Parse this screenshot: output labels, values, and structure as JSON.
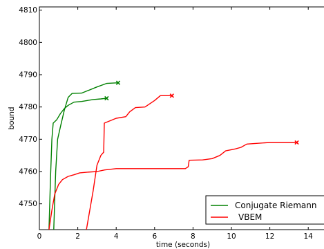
{
  "chart_data": {
    "type": "line",
    "title": "",
    "xlabel": "time (seconds)",
    "ylabel": "bound",
    "xlim": [
      0,
      15
    ],
    "ylim": [
      4742,
      4811
    ],
    "xticks": [
      0,
      2,
      4,
      6,
      8,
      10,
      12,
      14
    ],
    "yticks": [
      4750,
      4760,
      4770,
      4780,
      4790,
      4800,
      4810
    ],
    "grid": false,
    "legend_position": "bottom-right",
    "series": [
      {
        "name": "Conjugate Riemann",
        "color": "#008000",
        "end_marker": "x",
        "points": [
          [
            0.5,
            4742
          ],
          [
            0.58,
            4758
          ],
          [
            0.65,
            4770
          ],
          [
            0.72,
            4775
          ],
          [
            0.9,
            4776
          ],
          [
            1.1,
            4778
          ],
          [
            1.3,
            4779.5
          ],
          [
            1.5,
            4780.5
          ],
          [
            1.8,
            4781.5
          ],
          [
            2.2,
            4781.7
          ],
          [
            2.8,
            4782.3
          ],
          [
            3.2,
            4782.5
          ],
          [
            3.5,
            4782.7
          ]
        ]
      },
      {
        "name": "Conjugate Riemann",
        "color": "#008000",
        "end_marker": "x",
        "points": [
          [
            0.75,
            4742
          ],
          [
            0.85,
            4760
          ],
          [
            0.95,
            4770
          ],
          [
            1.1,
            4774
          ],
          [
            1.3,
            4779
          ],
          [
            1.5,
            4783
          ],
          [
            1.7,
            4784.2
          ],
          [
            2.2,
            4784.3
          ],
          [
            3.0,
            4786.2
          ],
          [
            3.5,
            4787.3
          ],
          [
            4.1,
            4787.5
          ]
        ]
      },
      {
        "name": "VBEM",
        "color": "#ff0000",
        "end_marker": "x",
        "points": [
          [
            0.5,
            4742
          ],
          [
            0.65,
            4748
          ],
          [
            0.8,
            4753
          ],
          [
            1.0,
            4756
          ],
          [
            1.2,
            4757.5
          ],
          [
            1.5,
            4758.5
          ],
          [
            1.8,
            4759
          ],
          [
            2.1,
            4759.6
          ],
          [
            2.5,
            4759.8
          ],
          [
            3.0,
            4760
          ],
          [
            3.4,
            4760.5
          ],
          [
            4.0,
            4760.9
          ],
          [
            7.6,
            4760.9
          ],
          [
            7.75,
            4761.5
          ],
          [
            7.8,
            4763.5
          ],
          [
            8.5,
            4763.6
          ],
          [
            9.0,
            4764.0
          ],
          [
            9.4,
            4765.0
          ],
          [
            9.7,
            4766.4
          ],
          [
            10.2,
            4767.0
          ],
          [
            10.5,
            4767.5
          ],
          [
            10.8,
            4768.5
          ],
          [
            11.5,
            4768.8
          ],
          [
            12.0,
            4769.0
          ],
          [
            13.4,
            4769.0
          ]
        ]
      },
      {
        "name": "VBEM",
        "color": "#ff0000",
        "end_marker": "x",
        "points": [
          [
            2.45,
            4742
          ],
          [
            2.8,
            4754
          ],
          [
            3.0,
            4762
          ],
          [
            3.2,
            4765
          ],
          [
            3.35,
            4766
          ],
          [
            3.38,
            4775
          ],
          [
            4.0,
            4776.5
          ],
          [
            4.5,
            4777
          ],
          [
            4.7,
            4778.5
          ],
          [
            5.0,
            4779.8
          ],
          [
            5.5,
            4780
          ],
          [
            6.0,
            4782
          ],
          [
            6.3,
            4783.5
          ],
          [
            6.9,
            4783.5
          ]
        ]
      }
    ],
    "legend": [
      {
        "label": "Conjugate Riemann",
        "color": "#008000"
      },
      {
        "label": "VBEM",
        "color": "#ff0000"
      }
    ]
  }
}
